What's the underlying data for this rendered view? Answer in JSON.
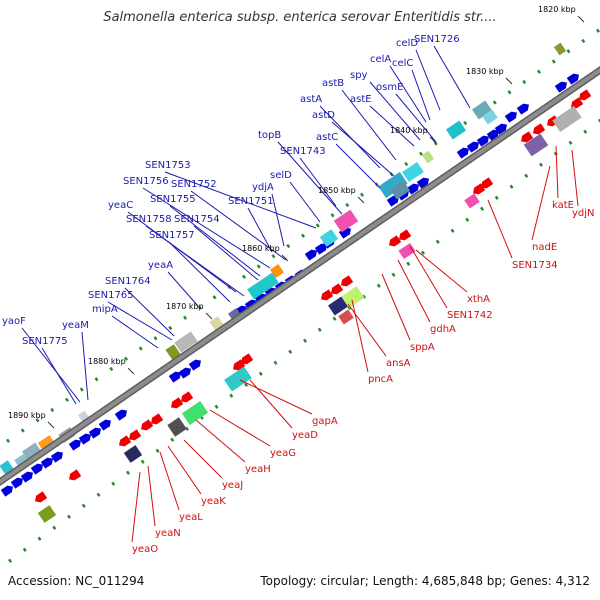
{
  "title": "Salmonella enterica subsp. enterica serovar Enteritidis str....",
  "footer": {
    "accession": "Accession: NC_011294",
    "stats": "Topology: circular; Length: 4,685,848 bp; Genes: 4,312"
  },
  "colors": {
    "backbone": "#8c8c8c",
    "forward_label": "#1a1ab0",
    "reverse_label": "#d01010",
    "forward_gene": "#0000dd",
    "reverse_gene": "#ee0000",
    "tick_dot": "#2a8a2a"
  },
  "ticks": [
    "1820 kbp",
    "1830 kbp",
    "1840 kbp",
    "1850 kbp",
    "1860 kbp",
    "1870 kbp",
    "1880 kbp",
    "1890 kbp"
  ],
  "forward_genes": [
    "celD",
    "SEN1726",
    "celA",
    "celC",
    "spy",
    "astB",
    "osmE",
    "astA",
    "astE",
    "astD",
    "topB",
    "astC",
    "SEN1743",
    "SEN1753",
    "selD",
    "SEN1756",
    "SEN1752",
    "ydjA",
    "SEN1755",
    "SEN1751",
    "yeaC",
    "SEN1758",
    "SEN1754",
    "SEN1757",
    "yeaA",
    "SEN1764",
    "SEN1765",
    "mipA",
    "yaoF",
    "yeaM",
    "SEN1775"
  ],
  "reverse_genes": [
    "ydjN",
    "katE",
    "nadE",
    "SEN1734",
    "xthA",
    "SEN1742",
    "gdhA",
    "sppA",
    "ansA",
    "pncA",
    "gapA",
    "yeaD",
    "yeaG",
    "yeaH",
    "yeaJ",
    "yeaK",
    "yeaL",
    "yeaN",
    "yeaO"
  ]
}
